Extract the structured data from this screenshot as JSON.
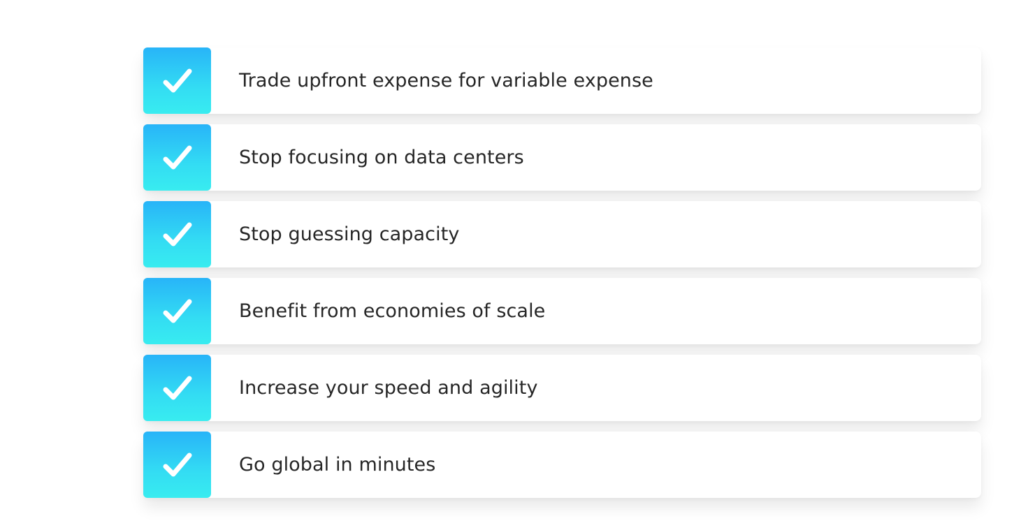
{
  "items": [
    {
      "label": "Trade upfront expense for variable expense",
      "icon": "check-icon"
    },
    {
      "label": "Stop focusing on data centers",
      "icon": "check-icon"
    },
    {
      "label": "Stop guessing capacity",
      "icon": "check-icon"
    },
    {
      "label": "Benefit from economies of scale",
      "icon": "check-icon"
    },
    {
      "label": "Increase your speed and agility",
      "icon": "check-icon"
    },
    {
      "label": "Go global in minutes",
      "icon": "check-icon"
    }
  ],
  "colors": {
    "check_gradient_top": "#28b4f8",
    "check_gradient_bottom": "#38ecf0",
    "text": "#262626"
  }
}
